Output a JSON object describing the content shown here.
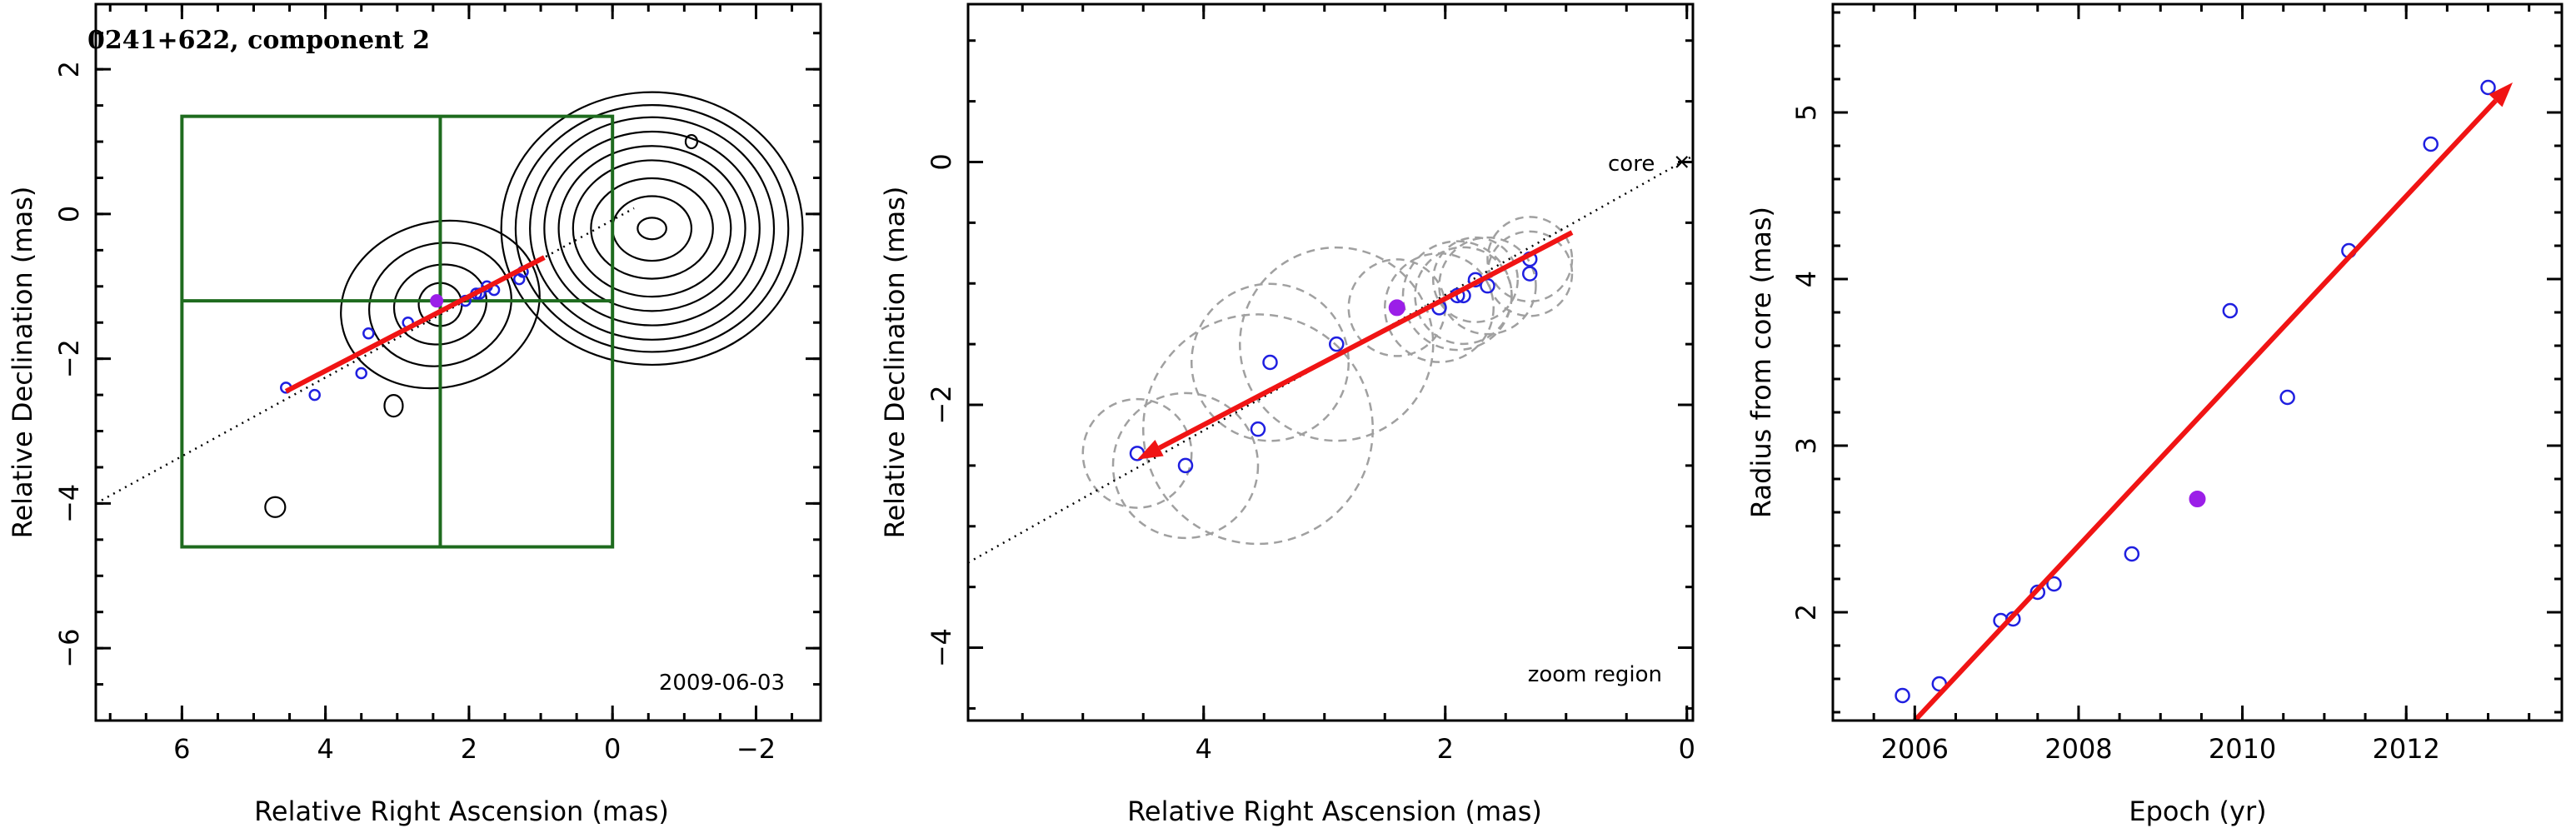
{
  "chart_data": [
    {
      "id": "panel1",
      "type": "scatter",
      "subtype": "contour-map",
      "title": "0241+622, component 2",
      "date_label": "2009-06-03",
      "xlabel": "Relative Right Ascension (mas)",
      "ylabel": "Relative Declination (mas)",
      "xlim": [
        7.2,
        -2.9
      ],
      "ylim": [
        -7.0,
        2.9
      ],
      "xticks": [
        6,
        4,
        2,
        0,
        -2
      ],
      "yticks": [
        2,
        0,
        -2,
        -4,
        -6
      ],
      "xtick_labels": [
        "6",
        "4",
        "2",
        "0",
        "−2"
      ],
      "ytick_labels": [
        "2",
        "0",
        "−2",
        "−4",
        "−6"
      ],
      "box": {
        "x": [
          6.0,
          0.0
        ],
        "y": [
          -4.6,
          1.35
        ],
        "x_div": 2.4,
        "y_div": -1.2
      },
      "points": {
        "x": [
          4.55,
          4.15,
          3.5,
          3.4,
          2.85,
          2.45,
          2.05,
          1.9,
          1.85,
          1.75,
          1.65,
          1.3,
          1.25
        ],
        "y": [
          -2.4,
          -2.5,
          -2.2,
          -1.65,
          -1.5,
          -1.2,
          -1.2,
          -1.1,
          -1.1,
          -1.0,
          -1.05,
          -0.9,
          -0.8
        ],
        "filled_index": 5
      },
      "trend_line": {
        "x": [
          7.2,
          -0.3
        ],
        "y": [
          -4.0,
          0.08
        ]
      },
      "arrow": {
        "from": [
          0.95,
          -0.6
        ],
        "to": [
          4.55,
          -2.45
        ]
      },
      "contours": [
        {
          "cx": -0.55,
          "cy": -0.2,
          "levels_rx": [
            0.2,
            0.55,
            0.85,
            1.1,
            1.3,
            1.5,
            1.7,
            1.9,
            2.1
          ],
          "levels_ry": [
            0.15,
            0.45,
            0.7,
            0.95,
            1.15,
            1.35,
            1.55,
            1.72,
            1.9
          ]
        },
        {
          "cx": 2.4,
          "cy": -1.25,
          "levels_rx": [
            0.3,
            0.65,
            1.0,
            1.4
          ],
          "levels_ry": [
            0.3,
            0.55,
            0.85,
            1.15
          ]
        }
      ]
    },
    {
      "id": "panel2",
      "type": "scatter",
      "subtype": "zoom",
      "xlabel": "Relative Right Ascension (mas)",
      "ylabel": "Relative Declination (mas)",
      "xlim": [
        5.95,
        -0.05
      ],
      "ylim": [
        -4.6,
        1.3
      ],
      "xticks": [
        4,
        2,
        0
      ],
      "yticks": [
        0,
        -2,
        -4
      ],
      "xtick_labels": [
        "4",
        "2",
        "0"
      ],
      "ytick_labels": [
        "0",
        "−2",
        "−4"
      ],
      "core_label": "core",
      "zoom_label": "zoom region",
      "points": {
        "x": [
          4.55,
          4.15,
          3.55,
          3.45,
          2.9,
          2.4,
          2.05,
          1.9,
          1.85,
          1.75,
          1.65,
          1.3,
          1.3
        ],
        "y": [
          -2.4,
          -2.5,
          -2.2,
          -1.65,
          -1.5,
          -1.2,
          -1.2,
          -1.1,
          -1.1,
          -0.97,
          -1.02,
          -0.92,
          -0.8
        ],
        "r": [
          0.45,
          0.6,
          0.95,
          0.65,
          0.8,
          0.4,
          0.45,
          0.45,
          0.4,
          0.35,
          0.4,
          0.35,
          0.35
        ],
        "filled_index": 5
      },
      "trend_line": {
        "x": [
          5.95,
          -0.05
        ],
        "y": [
          -3.3,
          0.05
        ]
      },
      "arrow": {
        "from": [
          0.95,
          -0.58
        ],
        "to": [
          4.55,
          -2.45
        ]
      }
    },
    {
      "id": "panel3",
      "type": "scatter",
      "xlabel": "Epoch (yr)",
      "ylabel": "Radius from core (mas)",
      "xlim": [
        2005.0,
        2013.9
      ],
      "ylim": [
        1.35,
        5.65
      ],
      "xticks": [
        2006,
        2008,
        2010,
        2012
      ],
      "yticks": [
        2,
        3,
        4,
        5
      ],
      "xtick_labels": [
        "2006",
        "2008",
        "2010",
        "2012"
      ],
      "ytick_labels": [
        "2",
        "3",
        "4",
        "5"
      ],
      "points": {
        "x": [
          2005.85,
          2006.3,
          2007.05,
          2007.2,
          2007.5,
          2007.7,
          2008.65,
          2009.45,
          2009.85,
          2010.55,
          2011.3,
          2012.3,
          2013.0
        ],
        "y": [
          1.5,
          1.57,
          1.95,
          1.96,
          2.12,
          2.17,
          2.35,
          2.68,
          3.81,
          3.29,
          4.17,
          4.81,
          5.15
        ],
        "filled_index": 7
      },
      "arrow": {
        "from": [
          2006.0,
          1.35
        ],
        "to": [
          2013.3,
          5.18
        ]
      }
    }
  ],
  "colors": {
    "point": "#1f1fe0",
    "filled_point": "#9b1fe8",
    "arrow": "#f01414",
    "box": "#1e6b1e",
    "dash_circle": "#a0a0a0"
  }
}
